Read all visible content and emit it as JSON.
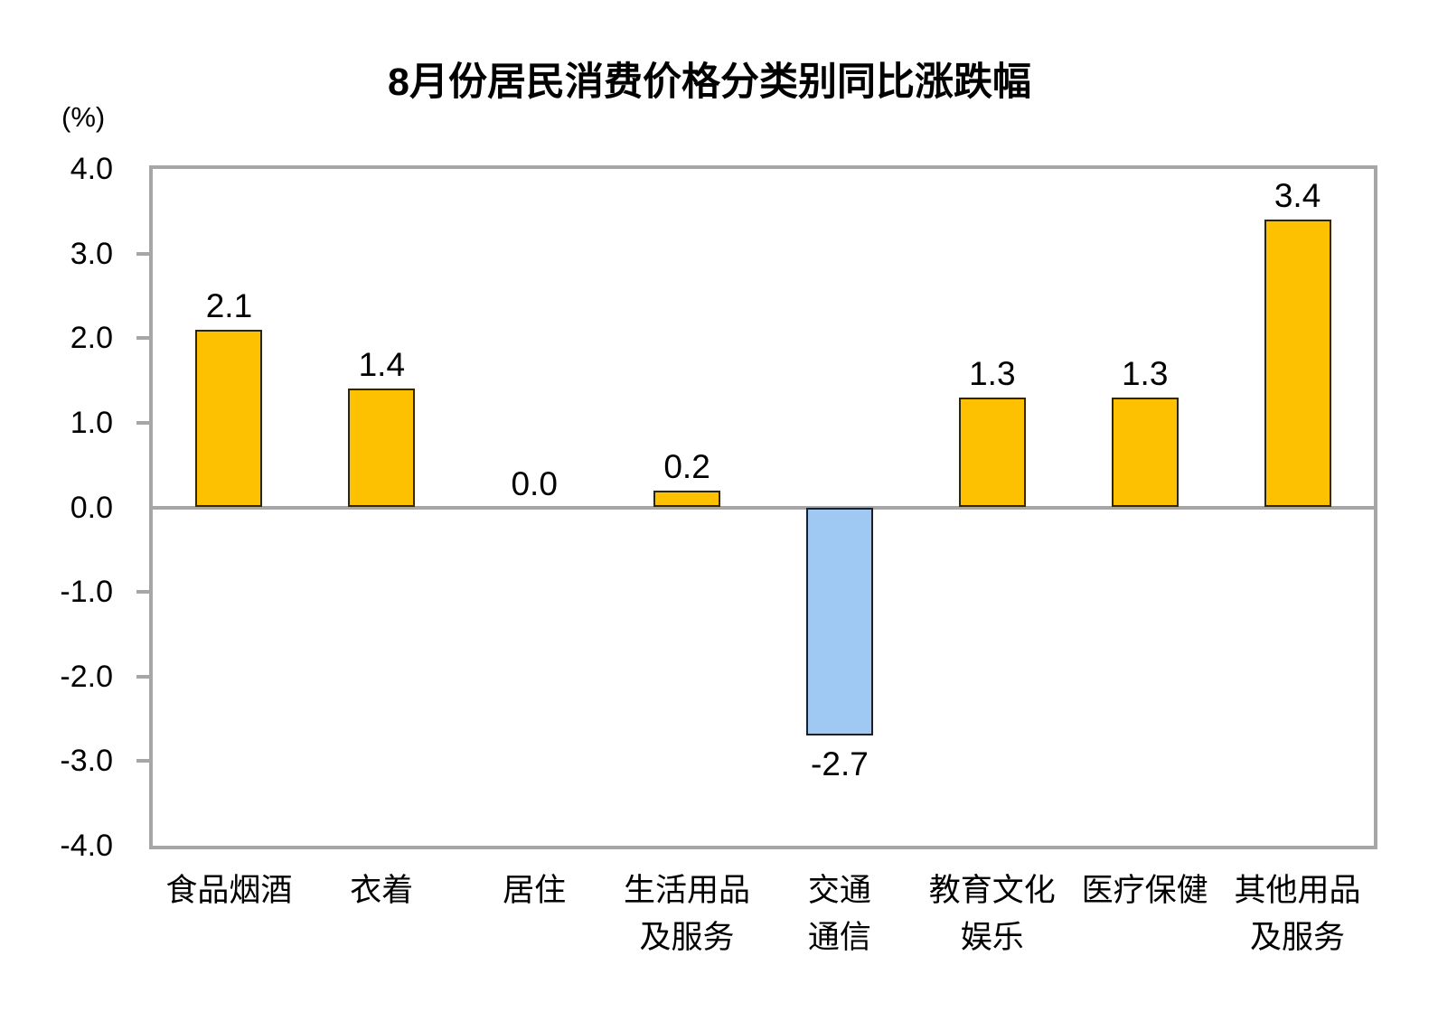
{
  "chart_data": {
    "type": "bar",
    "title": "8月份居民消费价格分类别同比涨跌幅",
    "unit_label": "(%)",
    "categories": [
      "食品烟酒",
      "衣着",
      "居住",
      "生活用品\n及服务",
      "交通\n通信",
      "教育文化\n娱乐",
      "医疗保健",
      "其他用品\n及服务"
    ],
    "values": [
      2.1,
      1.4,
      0.0,
      0.2,
      -2.7,
      1.3,
      1.3,
      3.4
    ],
    "value_labels": [
      "2.1",
      "1.4",
      "0.0",
      "0.2",
      "-2.7",
      "1.3",
      "1.3",
      "3.4"
    ],
    "ylim": [
      -4.0,
      4.0
    ],
    "ytick_interval": 1.0,
    "ytick_values": [
      4,
      3,
      2,
      1,
      0,
      -1,
      -2,
      -3,
      -4
    ],
    "ytick_labels": [
      "4.0",
      "3.0",
      "2.0",
      "1.0",
      "0.0",
      "-1.0",
      "-2.0",
      "-3.0",
      "-4.0"
    ],
    "grid": false,
    "legend": null,
    "colors": {
      "positive_bar": "#FDC101",
      "positive_bar_border": "#2E2605",
      "negative_bar": "#9FC9F3",
      "negative_bar_border": "#16202E",
      "axis_gray": "#A6A6A6",
      "text": "#000000"
    }
  }
}
